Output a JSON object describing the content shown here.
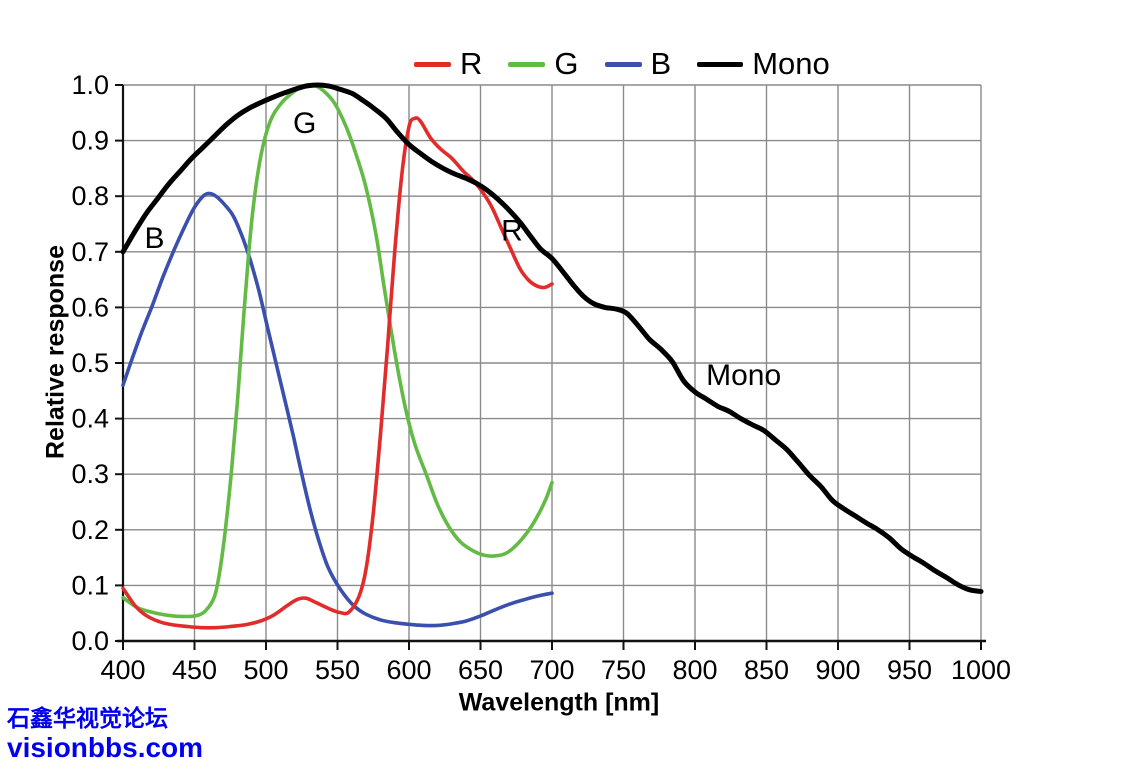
{
  "watermark": {
    "line1": "石鑫华视觉论坛",
    "line2": "visionbbs.com",
    "color": "#0000ee"
  },
  "chart_data": {
    "type": "line",
    "title": "",
    "xlabel": "Wavelength [nm]",
    "ylabel": "Relative response",
    "xlim": [
      400,
      1000
    ],
    "ylim": [
      0.0,
      1.0
    ],
    "x_ticks": [
      400,
      450,
      500,
      550,
      600,
      650,
      700,
      750,
      800,
      850,
      900,
      950,
      1000
    ],
    "y_ticks": [
      "0.0",
      "0.1",
      "0.2",
      "0.3",
      "0.4",
      "0.5",
      "0.6",
      "0.7",
      "0.8",
      "0.9",
      "1.0"
    ],
    "grid": true,
    "grid_color": "#8a8a8a",
    "legend": {
      "position": "top-center",
      "items": [
        {
          "label": "R",
          "color": "#e22b2b"
        },
        {
          "label": "G",
          "color": "#63bb46"
        },
        {
          "label": "B",
          "color": "#3a4fae"
        },
        {
          "label": "Mono",
          "color": "#000000"
        }
      ]
    },
    "annotations": [
      {
        "text": "B",
        "x": 422,
        "y": 0.725
      },
      {
        "text": "G",
        "x": 527,
        "y": 0.932
      },
      {
        "text": "R",
        "x": 672,
        "y": 0.738
      },
      {
        "text": "Mono",
        "x": 834,
        "y": 0.478
      }
    ],
    "draw_order": [
      "B",
      "G",
      "R",
      "Mono"
    ],
    "series": [
      {
        "name": "R",
        "color": "#e22b2b",
        "width": 3.6,
        "points": [
          [
            400,
            0.095
          ],
          [
            408,
            0.065
          ],
          [
            415,
            0.048
          ],
          [
            425,
            0.035
          ],
          [
            435,
            0.029
          ],
          [
            445,
            0.026
          ],
          [
            455,
            0.024
          ],
          [
            465,
            0.024
          ],
          [
            475,
            0.026
          ],
          [
            485,
            0.029
          ],
          [
            495,
            0.035
          ],
          [
            505,
            0.046
          ],
          [
            515,
            0.064
          ],
          [
            522,
            0.075
          ],
          [
            528,
            0.077
          ],
          [
            535,
            0.069
          ],
          [
            545,
            0.057
          ],
          [
            552,
            0.051
          ],
          [
            558,
            0.052
          ],
          [
            565,
            0.08
          ],
          [
            570,
            0.13
          ],
          [
            575,
            0.23
          ],
          [
            580,
            0.37
          ],
          [
            585,
            0.53
          ],
          [
            590,
            0.7
          ],
          [
            595,
            0.84
          ],
          [
            600,
            0.925
          ],
          [
            604,
            0.94
          ],
          [
            608,
            0.935
          ],
          [
            615,
            0.905
          ],
          [
            622,
            0.885
          ],
          [
            630,
            0.868
          ],
          [
            638,
            0.845
          ],
          [
            645,
            0.828
          ],
          [
            652,
            0.805
          ],
          [
            658,
            0.78
          ],
          [
            665,
            0.74
          ],
          [
            672,
            0.7
          ],
          [
            678,
            0.668
          ],
          [
            684,
            0.648
          ],
          [
            690,
            0.638
          ],
          [
            695,
            0.636
          ],
          [
            700,
            0.642
          ]
        ]
      },
      {
        "name": "G",
        "color": "#63bb46",
        "width": 3.6,
        "points": [
          [
            400,
            0.078
          ],
          [
            410,
            0.06
          ],
          [
            420,
            0.052
          ],
          [
            432,
            0.046
          ],
          [
            445,
            0.044
          ],
          [
            452,
            0.046
          ],
          [
            458,
            0.055
          ],
          [
            464,
            0.08
          ],
          [
            468,
            0.13
          ],
          [
            472,
            0.21
          ],
          [
            476,
            0.31
          ],
          [
            480,
            0.43
          ],
          [
            484,
            0.57
          ],
          [
            488,
            0.7
          ],
          [
            492,
            0.8
          ],
          [
            497,
            0.88
          ],
          [
            503,
            0.935
          ],
          [
            510,
            0.965
          ],
          [
            518,
            0.985
          ],
          [
            526,
            0.998
          ],
          [
            533,
            1.0
          ],
          [
            540,
            0.99
          ],
          [
            548,
            0.967
          ],
          [
            556,
            0.925
          ],
          [
            563,
            0.875
          ],
          [
            570,
            0.815
          ],
          [
            577,
            0.73
          ],
          [
            583,
            0.63
          ],
          [
            590,
            0.52
          ],
          [
            597,
            0.425
          ],
          [
            604,
            0.355
          ],
          [
            612,
            0.3
          ],
          [
            620,
            0.245
          ],
          [
            628,
            0.205
          ],
          [
            636,
            0.178
          ],
          [
            645,
            0.162
          ],
          [
            653,
            0.154
          ],
          [
            660,
            0.153
          ],
          [
            668,
            0.158
          ],
          [
            676,
            0.175
          ],
          [
            684,
            0.2
          ],
          [
            691,
            0.23
          ],
          [
            696,
            0.257
          ],
          [
            700,
            0.285
          ]
        ]
      },
      {
        "name": "B",
        "color": "#3a4fae",
        "width": 3.6,
        "points": [
          [
            400,
            0.46
          ],
          [
            406,
            0.505
          ],
          [
            413,
            0.555
          ],
          [
            420,
            0.6
          ],
          [
            428,
            0.655
          ],
          [
            436,
            0.705
          ],
          [
            444,
            0.75
          ],
          [
            450,
            0.78
          ],
          [
            456,
            0.8
          ],
          [
            460,
            0.805
          ],
          [
            465,
            0.8
          ],
          [
            471,
            0.785
          ],
          [
            477,
            0.765
          ],
          [
            483,
            0.73
          ],
          [
            489,
            0.685
          ],
          [
            495,
            0.63
          ],
          [
            501,
            0.565
          ],
          [
            507,
            0.5
          ],
          [
            513,
            0.435
          ],
          [
            519,
            0.37
          ],
          [
            525,
            0.3
          ],
          [
            531,
            0.235
          ],
          [
            537,
            0.18
          ],
          [
            543,
            0.135
          ],
          [
            549,
            0.105
          ],
          [
            555,
            0.082
          ],
          [
            562,
            0.062
          ],
          [
            570,
            0.048
          ],
          [
            580,
            0.038
          ],
          [
            590,
            0.033
          ],
          [
            600,
            0.03
          ],
          [
            610,
            0.028
          ],
          [
            620,
            0.028
          ],
          [
            630,
            0.031
          ],
          [
            640,
            0.036
          ],
          [
            650,
            0.045
          ],
          [
            660,
            0.056
          ],
          [
            670,
            0.066
          ],
          [
            680,
            0.074
          ],
          [
            690,
            0.081
          ],
          [
            700,
            0.086
          ]
        ]
      },
      {
        "name": "Mono",
        "color": "#000000",
        "width": 5,
        "points": [
          [
            400,
            0.7
          ],
          [
            408,
            0.735
          ],
          [
            416,
            0.768
          ],
          [
            424,
            0.795
          ],
          [
            432,
            0.822
          ],
          [
            440,
            0.845
          ],
          [
            448,
            0.868
          ],
          [
            456,
            0.888
          ],
          [
            464,
            0.908
          ],
          [
            472,
            0.928
          ],
          [
            480,
            0.945
          ],
          [
            488,
            0.958
          ],
          [
            496,
            0.968
          ],
          [
            504,
            0.977
          ],
          [
            512,
            0.985
          ],
          [
            520,
            0.992
          ],
          [
            528,
            0.998
          ],
          [
            536,
            1.0
          ],
          [
            544,
            0.998
          ],
          [
            552,
            0.992
          ],
          [
            560,
            0.985
          ],
          [
            568,
            0.972
          ],
          [
            576,
            0.957
          ],
          [
            584,
            0.94
          ],
          [
            592,
            0.915
          ],
          [
            600,
            0.893
          ],
          [
            608,
            0.877
          ],
          [
            616,
            0.862
          ],
          [
            624,
            0.85
          ],
          [
            632,
            0.84
          ],
          [
            640,
            0.832
          ],
          [
            648,
            0.822
          ],
          [
            655,
            0.81
          ],
          [
            662,
            0.795
          ],
          [
            670,
            0.775
          ],
          [
            678,
            0.752
          ],
          [
            685,
            0.728
          ],
          [
            692,
            0.705
          ],
          [
            700,
            0.688
          ],
          [
            708,
            0.663
          ],
          [
            715,
            0.64
          ],
          [
            722,
            0.62
          ],
          [
            729,
            0.607
          ],
          [
            737,
            0.6
          ],
          [
            745,
            0.597
          ],
          [
            752,
            0.59
          ],
          [
            760,
            0.568
          ],
          [
            768,
            0.543
          ],
          [
            776,
            0.525
          ],
          [
            784,
            0.503
          ],
          [
            792,
            0.468
          ],
          [
            800,
            0.448
          ],
          [
            808,
            0.435
          ],
          [
            816,
            0.422
          ],
          [
            824,
            0.413
          ],
          [
            832,
            0.4
          ],
          [
            840,
            0.389
          ],
          [
            848,
            0.379
          ],
          [
            856,
            0.362
          ],
          [
            864,
            0.345
          ],
          [
            872,
            0.322
          ],
          [
            880,
            0.298
          ],
          [
            888,
            0.278
          ],
          [
            896,
            0.253
          ],
          [
            904,
            0.238
          ],
          [
            912,
            0.225
          ],
          [
            920,
            0.212
          ],
          [
            928,
            0.2
          ],
          [
            936,
            0.185
          ],
          [
            944,
            0.166
          ],
          [
            952,
            0.152
          ],
          [
            960,
            0.14
          ],
          [
            968,
            0.126
          ],
          [
            976,
            0.114
          ],
          [
            984,
            0.101
          ],
          [
            992,
            0.092
          ],
          [
            1000,
            0.089
          ]
        ]
      }
    ]
  }
}
